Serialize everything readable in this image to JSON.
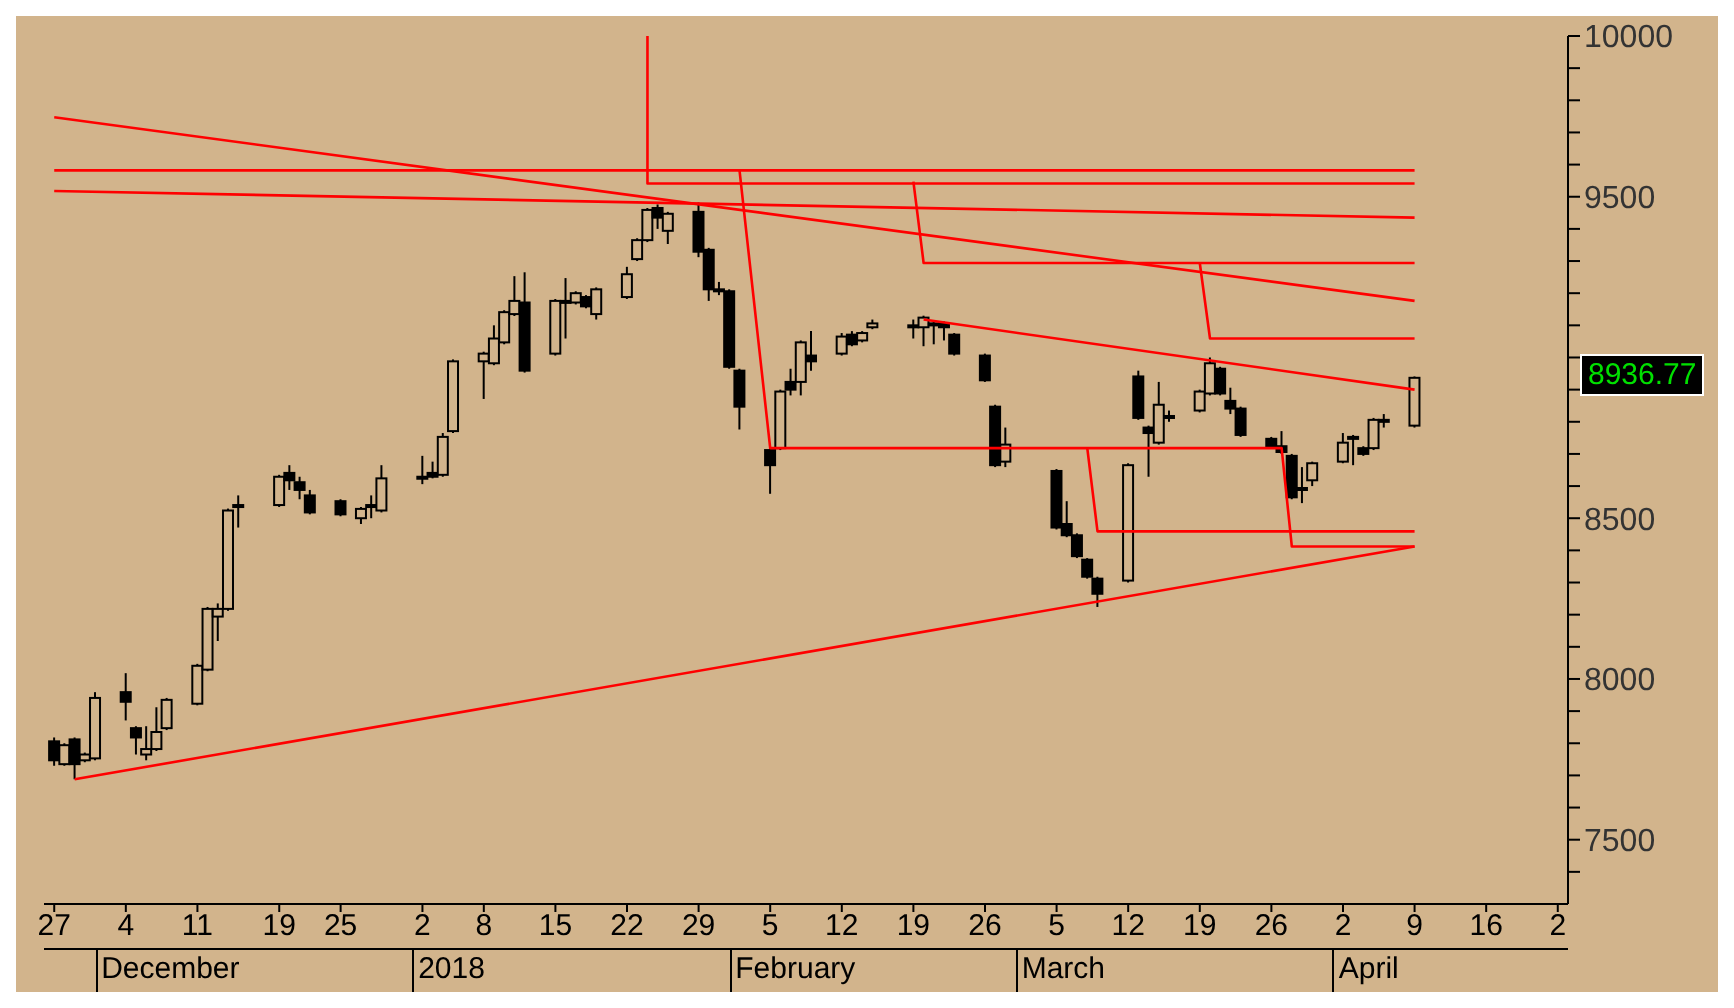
{
  "chart_data": {
    "type": "candlestick",
    "x": [
      "2017-11-27",
      "2017-11-28",
      "2017-11-29",
      "2017-11-30",
      "2017-12-01",
      "2017-12-04",
      "2017-12-05",
      "2017-12-06",
      "2017-12-07",
      "2017-12-08",
      "2017-12-11",
      "2017-12-12",
      "2017-12-13",
      "2017-12-14",
      "2017-12-15",
      "2017-12-19",
      "2017-12-20",
      "2017-12-21",
      "2017-12-22",
      "2017-12-25",
      "2017-12-27",
      "2017-12-28",
      "2017-12-29",
      "2018-01-02",
      "2018-01-03",
      "2018-01-04",
      "2018-01-05",
      "2018-01-08",
      "2018-01-09",
      "2018-01-10",
      "2018-01-11",
      "2018-01-12",
      "2018-01-15",
      "2018-01-16",
      "2018-01-17",
      "2018-01-18",
      "2018-01-19",
      "2018-01-22",
      "2018-01-23",
      "2018-01-24",
      "2018-01-25",
      "2018-01-26",
      "2018-01-29",
      "2018-01-30",
      "2018-01-31",
      "2018-02-01",
      "2018-02-02",
      "2018-02-05",
      "2018-02-06",
      "2018-02-07",
      "2018-02-08",
      "2018-02-09",
      "2018-02-12",
      "2018-02-13",
      "2018-02-14",
      "2018-02-15",
      "2018-02-19",
      "2018-02-20",
      "2018-02-21",
      "2018-02-22",
      "2018-02-23",
      "2018-02-26",
      "2018-02-27",
      "2018-02-28",
      "2018-03-05",
      "2018-03-06",
      "2018-03-07",
      "2018-03-08",
      "2018-03-09",
      "2018-03-12",
      "2018-03-13",
      "2018-03-14",
      "2018-03-15",
      "2018-03-16",
      "2018-03-19",
      "2018-03-20",
      "2018-03-21",
      "2018-03-22",
      "2018-03-23",
      "2018-03-26",
      "2018-03-27",
      "2018-03-28",
      "2018-03-29",
      "2018-03-30",
      "2018-04-02",
      "2018-04-03",
      "2018-04-04",
      "2018-04-05",
      "2018-04-06",
      "2018-04-09"
    ],
    "ohlc": [
      [
        7806,
        7818,
        7730,
        7747
      ],
      [
        7735,
        7800,
        7730,
        7794
      ],
      [
        7812,
        7818,
        7688,
        7735
      ],
      [
        7747,
        7771,
        7741,
        7765
      ],
      [
        7753,
        7959,
        7747,
        7941
      ],
      [
        7959,
        8018,
        7871,
        7929
      ],
      [
        7847,
        7853,
        7765,
        7818
      ],
      [
        7765,
        7853,
        7747,
        7782
      ],
      [
        7782,
        7912,
        7776,
        7835
      ],
      [
        7847,
        7941,
        7841,
        7935
      ],
      [
        7923,
        8047,
        7918,
        8041
      ],
      [
        8029,
        8224,
        8024,
        8218
      ],
      [
        8194,
        8235,
        8118,
        8218
      ],
      [
        8218,
        8530,
        8212,
        8524
      ],
      [
        8535,
        8571,
        8471,
        8541
      ],
      [
        8541,
        8635,
        8535,
        8629
      ],
      [
        8641,
        8665,
        8588,
        8618
      ],
      [
        8612,
        8629,
        8559,
        8588
      ],
      [
        8571,
        8588,
        8512,
        8518
      ],
      [
        8553,
        8559,
        8506,
        8512
      ],
      [
        8500,
        8535,
        8482,
        8529
      ],
      [
        8535,
        8571,
        8500,
        8541
      ],
      [
        8524,
        8665,
        8518,
        8624
      ],
      [
        8624,
        8694,
        8606,
        8629
      ],
      [
        8641,
        8676,
        8624,
        8629
      ],
      [
        8635,
        8765,
        8629,
        8753
      ],
      [
        8771,
        8994,
        8765,
        8988
      ],
      [
        8988,
        9018,
        8871,
        9012
      ],
      [
        8982,
        9100,
        8976,
        9059
      ],
      [
        9047,
        9147,
        9041,
        9141
      ],
      [
        9135,
        9253,
        9129,
        9176
      ],
      [
        9171,
        9265,
        8953,
        8959
      ],
      [
        9012,
        9182,
        9006,
        9176
      ],
      [
        9171,
        9247,
        9059,
        9176
      ],
      [
        9171,
        9206,
        9165,
        9200
      ],
      [
        9188,
        9194,
        9153,
        9159
      ],
      [
        9135,
        9218,
        9118,
        9212
      ],
      [
        9188,
        9282,
        9182,
        9259
      ],
      [
        9306,
        9371,
        9300,
        9365
      ],
      [
        9365,
        9465,
        9359,
        9459
      ],
      [
        9465,
        9476,
        9400,
        9435
      ],
      [
        9394,
        9453,
        9353,
        9447
      ],
      [
        9453,
        9482,
        9312,
        9329
      ],
      [
        9335,
        9341,
        9176,
        9212
      ],
      [
        9212,
        9235,
        9194,
        9206
      ],
      [
        9206,
        9212,
        8965,
        8971
      ],
      [
        8959,
        8965,
        8776,
        8847
      ],
      [
        8712,
        8718,
        8576,
        8665
      ],
      [
        8718,
        8900,
        8712,
        8894
      ],
      [
        8924,
        8965,
        8882,
        8900
      ],
      [
        8924,
        9053,
        8882,
        9047
      ],
      [
        9006,
        9082,
        8959,
        8988
      ],
      [
        9012,
        9076,
        9006,
        9065
      ],
      [
        9071,
        9082,
        9035,
        9041
      ],
      [
        9053,
        9082,
        9047,
        9076
      ],
      [
        9094,
        9118,
        9088,
        9106
      ],
      [
        9100,
        9118,
        9059,
        9100
      ],
      [
        9094,
        9130,
        9035,
        9124
      ],
      [
        9106,
        9112,
        9041,
        9100
      ],
      [
        9106,
        9112,
        9053,
        9094
      ],
      [
        9071,
        9076,
        9006,
        9012
      ],
      [
        9006,
        9012,
        8924,
        8929
      ],
      [
        8847,
        8853,
        8659,
        8665
      ],
      [
        8676,
        8782,
        8659,
        8729
      ],
      [
        8647,
        8653,
        8465,
        8471
      ],
      [
        8482,
        8553,
        8441,
        8447
      ],
      [
        8447,
        8453,
        8376,
        8382
      ],
      [
        8371,
        8376,
        8312,
        8318
      ],
      [
        8312,
        8318,
        8224,
        8265
      ],
      [
        8306,
        8671,
        8300,
        8665
      ],
      [
        8941,
        8959,
        8806,
        8812
      ],
      [
        8782,
        8788,
        8629,
        8765
      ],
      [
        8735,
        8924,
        8729,
        8853
      ],
      [
        8812,
        8835,
        8800,
        8818
      ],
      [
        8835,
        8900,
        8829,
        8894
      ],
      [
        8888,
        9000,
        8882,
        8982
      ],
      [
        8965,
        8971,
        8882,
        8888
      ],
      [
        8865,
        8906,
        8824,
        8841
      ],
      [
        8841,
        8847,
        8753,
        8759
      ],
      [
        8747,
        8753,
        8718,
        8724
      ],
      [
        8724,
        8771,
        8700,
        8706
      ],
      [
        8694,
        8700,
        8559,
        8565
      ],
      [
        8594,
        8659,
        8547,
        8588
      ],
      [
        8618,
        8676,
        8600,
        8671
      ],
      [
        8676,
        8765,
        8671,
        8735
      ],
      [
        8753,
        8759,
        8665,
        8747
      ],
      [
        8718,
        8724,
        8694,
        8700
      ],
      [
        8718,
        8812,
        8712,
        8806
      ],
      [
        8800,
        8824,
        8782,
        8806
      ],
      [
        8788,
        8941,
        8782,
        8936.77
      ]
    ],
    "series": [
      {
        "type": "line",
        "color": "#ff0000",
        "x": [
          "2017-11-27",
          "2018-04-09"
        ],
        "values": [
          9747,
          9176
        ]
      },
      {
        "type": "line",
        "color": "#ff0000",
        "x": [
          "2017-11-27",
          "2018-04-09"
        ],
        "values": [
          9518,
          9435
        ]
      },
      {
        "type": "line",
        "color": "#ff0000",
        "x": [
          "2017-11-27",
          "2018-04-09"
        ],
        "values": [
          9582,
          9582
        ]
      },
      {
        "type": "line",
        "color": "#ff0000",
        "x": [
          "2018-01-24",
          "2018-01-24",
          "2018-04-09"
        ],
        "values": [
          10000,
          9541,
          9541
        ]
      },
      {
        "type": "line",
        "color": "#ff0000",
        "x": [
          "2018-02-02",
          "2018-02-05",
          "2018-03-27",
          "2018-03-28",
          "2018-04-09"
        ],
        "values": [
          9582,
          8718,
          8718,
          8412,
          8412
        ]
      },
      {
        "type": "line",
        "color": "#ff0000",
        "x": [
          "2018-02-19",
          "2018-02-20",
          "2018-04-09"
        ],
        "values": [
          9547,
          9294,
          9294
        ]
      },
      {
        "type": "line",
        "color": "#ff0000",
        "x": [
          "2018-03-19",
          "2018-03-20",
          "2018-04-09"
        ],
        "values": [
          9294,
          9059,
          9059
        ]
      },
      {
        "type": "line",
        "color": "#ff0000",
        "x": [
          "2018-02-20",
          "2018-04-09"
        ],
        "values": [
          9118,
          8900
        ]
      },
      {
        "type": "line",
        "color": "#ff0000",
        "x": [
          "2018-03-08",
          "2018-03-09",
          "2018-04-09"
        ],
        "values": [
          8718,
          8459,
          8459
        ]
      },
      {
        "type": "line",
        "color": "#ff0000",
        "x": [
          "2017-11-29",
          "2018-04-09"
        ],
        "values": [
          7688,
          8412
        ]
      }
    ],
    "xlim": [
      "2017-11-26",
      "2018-04-24"
    ],
    "xticks": [
      {
        "value": "2017-11-27",
        "label": "27"
      },
      {
        "value": "2017-12-04",
        "label": "4"
      },
      {
        "value": "2017-12-11",
        "label": "11"
      },
      {
        "value": "2017-12-19",
        "label": "19"
      },
      {
        "value": "2017-12-25",
        "label": "25"
      },
      {
        "value": "2018-01-02",
        "label": "2"
      },
      {
        "value": "2018-01-08",
        "label": "8"
      },
      {
        "value": "2018-01-15",
        "label": "15"
      },
      {
        "value": "2018-01-22",
        "label": "22"
      },
      {
        "value": "2018-01-29",
        "label": "29"
      },
      {
        "value": "2018-02-05",
        "label": "5"
      },
      {
        "value": "2018-02-12",
        "label": "12"
      },
      {
        "value": "2018-02-19",
        "label": "19"
      },
      {
        "value": "2018-02-26",
        "label": "26"
      },
      {
        "value": "2018-03-05",
        "label": "5"
      },
      {
        "value": "2018-03-12",
        "label": "12"
      },
      {
        "value": "2018-03-19",
        "label": "19"
      },
      {
        "value": "2018-03-26",
        "label": "26"
      },
      {
        "value": "2018-04-02",
        "label": "2"
      },
      {
        "value": "2018-04-09",
        "label": "9"
      },
      {
        "value": "2018-04-16",
        "label": "16"
      },
      {
        "value": "2018-04-23",
        "label": "2"
      }
    ],
    "ylim": [
      7300,
      10000
    ],
    "yticks": [
      {
        "value": 7400,
        "label": null
      },
      7500,
      {
        "value": 7600,
        "label": null
      },
      {
        "value": 7700,
        "label": null
      },
      {
        "value": 7800,
        "label": null
      },
      {
        "value": 7900,
        "label": null
      },
      8000,
      {
        "value": 8100,
        "label": null
      },
      {
        "value": 8200,
        "label": null
      },
      {
        "value": 8300,
        "label": null
      },
      {
        "value": 8400,
        "label": null
      },
      8500,
      {
        "value": 8600,
        "label": null
      },
      {
        "value": 8700,
        "label": null
      },
      {
        "value": 8800,
        "label": null
      },
      {
        "value": 8900,
        "label": null
      },
      {
        "value": 9000,
        "label": null
      },
      {
        "value": 9100,
        "label": null
      },
      {
        "value": 9200,
        "label": null
      },
      {
        "value": 9300,
        "label": null
      },
      {
        "value": 9400,
        "label": null
      },
      9500,
      {
        "value": 9600,
        "label": null
      },
      {
        "value": 9700,
        "label": null
      },
      {
        "value": 9800,
        "label": null
      },
      {
        "value": 9900,
        "label": null
      },
      10000
    ],
    "marker": "none",
    "grid": false,
    "legend": false,
    "annotations": [
      "December",
      "2018",
      "February",
      "March",
      "April",
      "8936.77"
    ]
  }
}
